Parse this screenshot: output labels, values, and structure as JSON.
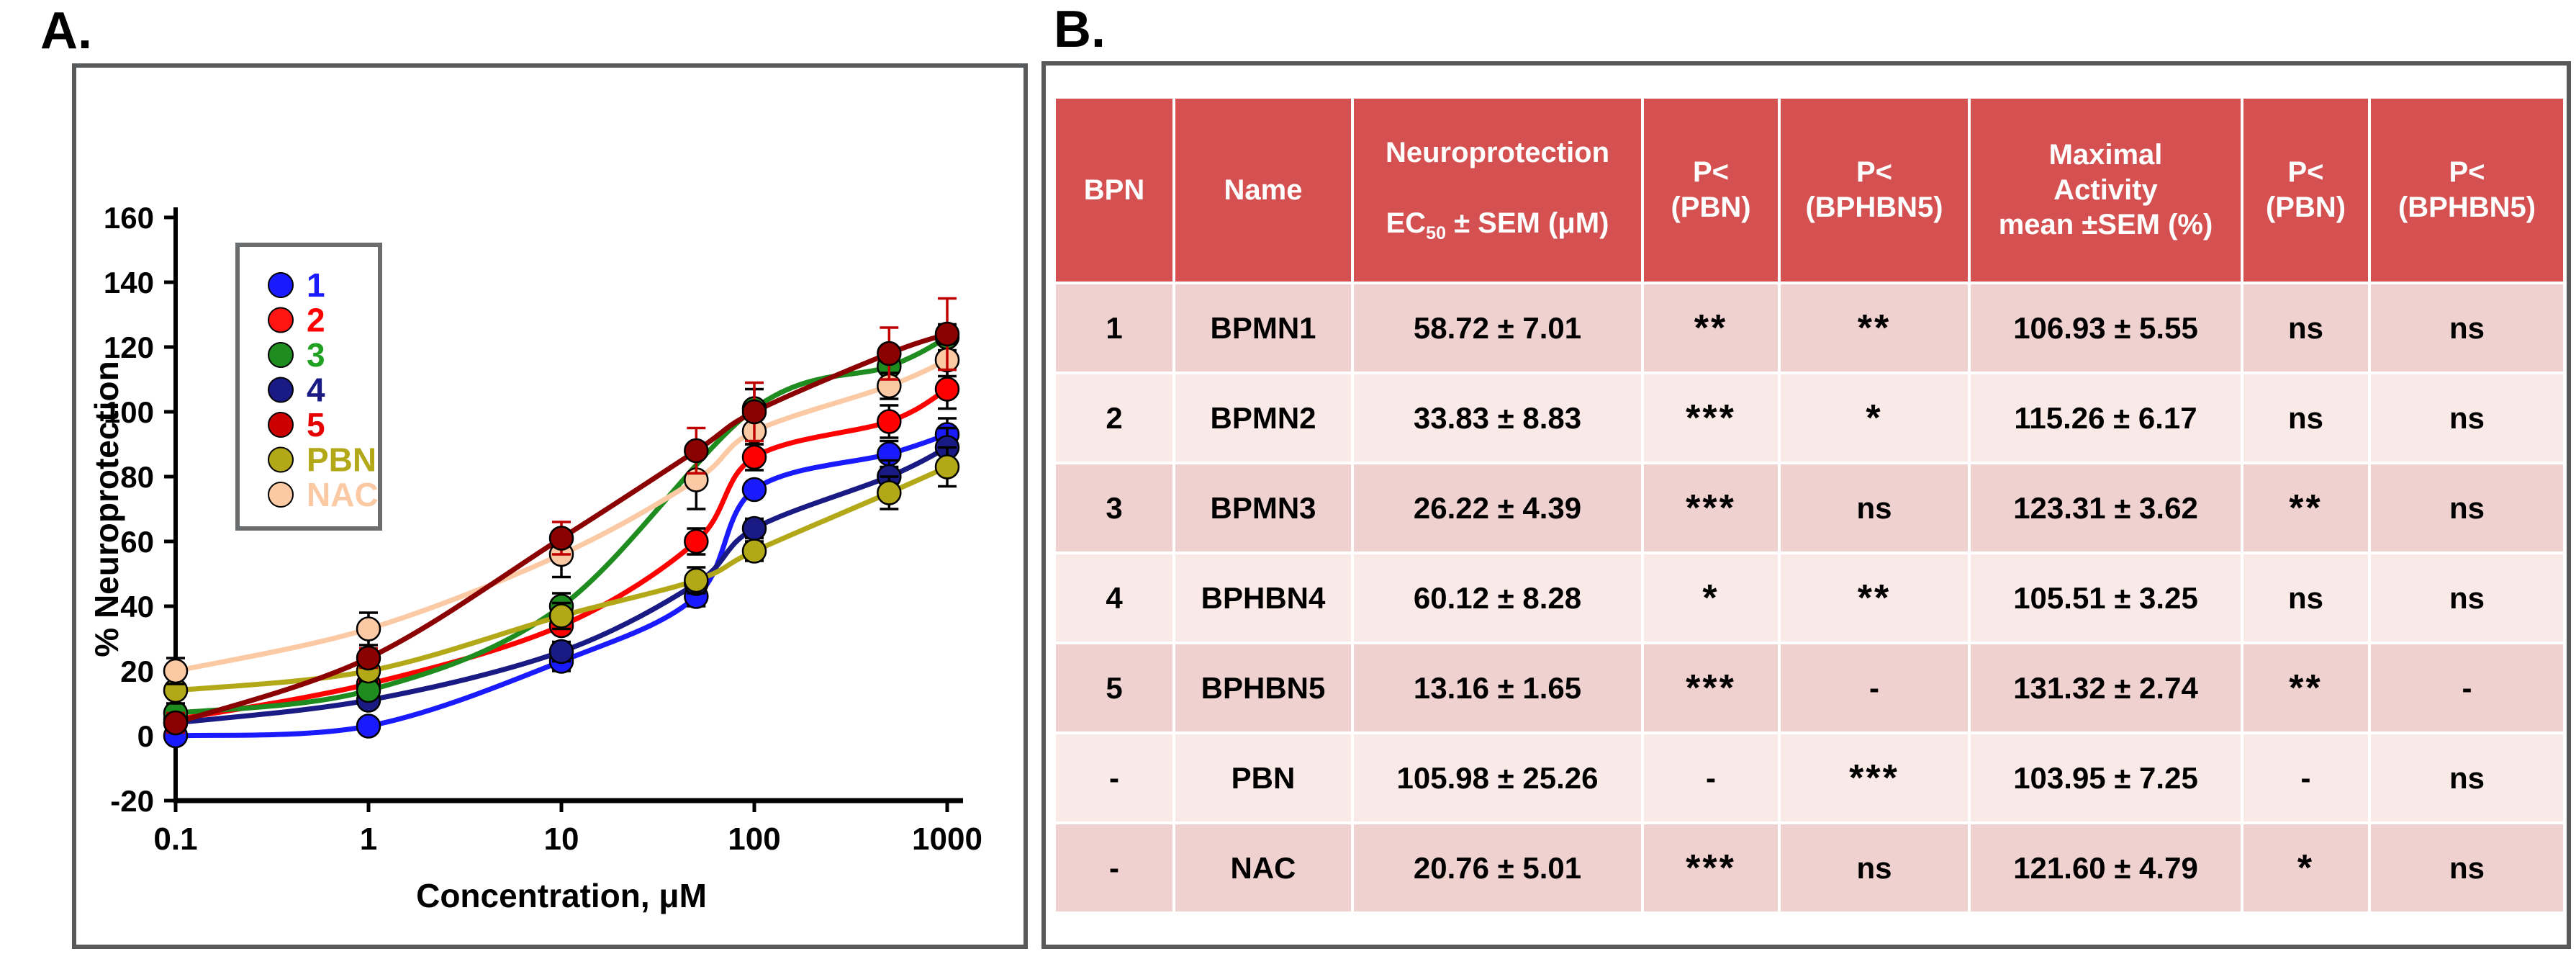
{
  "panel_a": {
    "label": "A."
  },
  "panel_b": {
    "label": "B."
  },
  "colors": {
    "header_bg": "#d55151",
    "header_text": "#ffffff",
    "row_dark": "#efd2d0",
    "row_light": "#f9e9e7",
    "panel_border": "#58595b",
    "legend_border": "#6a6c6e",
    "background": "#ffffff"
  },
  "chart_data": {
    "type": "line",
    "xscale": "log",
    "xlabel": "Concentration, μM",
    "ylabel": "% Neuroprotection",
    "xlim": [
      0.1,
      1000
    ],
    "ylim": [
      -20,
      160
    ],
    "ytick_step": 20,
    "xticks": [
      0.1,
      1,
      10,
      100,
      1000
    ],
    "xtick_labels": [
      "0.1",
      "1",
      "10",
      "100",
      "1000"
    ],
    "grid": false,
    "legend_position": "upper-left-inside",
    "series": [
      {
        "name": "1",
        "z": 1,
        "color": "#1a1aff",
        "label_color": "#1a1aff",
        "legend_marker": "#1a1aff",
        "err_color": "#000000",
        "x": [
          0.1,
          1,
          10,
          50,
          100,
          500,
          1000
        ],
        "y": [
          0,
          3,
          23,
          43,
          76,
          87,
          93
        ],
        "err": [
          0,
          0,
          3,
          3,
          0,
          4,
          5
        ]
      },
      {
        "name": "2",
        "z": 2,
        "color": "#ff0000",
        "label_color": "#ff0000",
        "legend_marker": "#ff1414",
        "err_color": "#000000",
        "x": [
          0.1,
          1,
          10,
          50,
          100,
          500,
          1000
        ],
        "y": [
          5,
          16,
          34,
          60,
          86,
          97,
          107
        ],
        "err": [
          0,
          0,
          0,
          4,
          4,
          5,
          6
        ]
      },
      {
        "name": "3",
        "z": 4,
        "color": "#1e8c1e",
        "label_color": "#21a121",
        "legend_marker": "#1e8c1e",
        "err_color": "#000000",
        "x": [
          0.1,
          1,
          10,
          100,
          500,
          1000
        ],
        "y": [
          7,
          14,
          40,
          101,
          114,
          123
        ],
        "err": [
          0,
          0,
          4,
          6,
          4,
          4
        ]
      },
      {
        "name": "4",
        "z": 3,
        "color": "#1a1a85",
        "label_color": "#1a1a85",
        "legend_marker": "#1a1a85",
        "err_color": "#000000",
        "x": [
          0.1,
          1,
          10,
          50,
          100,
          500,
          1000
        ],
        "y": [
          4,
          11,
          26,
          47,
          64,
          80,
          89
        ],
        "err": [
          0,
          0,
          3,
          0,
          3,
          5,
          6
        ]
      },
      {
        "name": "5",
        "z": 7,
        "color": "#8b0000",
        "label_color": "#e60000",
        "legend_marker": "#cc0000",
        "err_color": "#c00000",
        "x": [
          0.1,
          1,
          10,
          50,
          100,
          500,
          1000
        ],
        "y": [
          4,
          24,
          61,
          88,
          100,
          118,
          124
        ],
        "err": [
          3,
          3,
          5,
          7,
          9,
          8,
          11
        ]
      },
      {
        "name": "PBN",
        "z": 5,
        "color": "#b3a818",
        "label_color": "#b3a818",
        "legend_marker": "#b3a818",
        "err_color": "#000000",
        "x": [
          0.1,
          1,
          10,
          50,
          100,
          500,
          1000
        ],
        "y": [
          14,
          20,
          37,
          48,
          57,
          75,
          83
        ],
        "err": [
          4,
          3,
          4,
          4,
          3,
          5,
          6
        ]
      },
      {
        "name": "NAC",
        "z": 6,
        "color": "#fbc9a3",
        "label_color": "#fbc9a3",
        "legend_marker": "#fbc9a3",
        "err_color": "#000000",
        "x": [
          0.1,
          1,
          10,
          50,
          100,
          500,
          1000
        ],
        "y": [
          20,
          33,
          56,
          79,
          94,
          108,
          116
        ],
        "err": [
          4,
          5,
          7,
          9,
          4,
          4,
          5
        ]
      }
    ]
  },
  "table": {
    "headers": [
      {
        "label": "BPN"
      },
      {
        "label": "Name"
      },
      {
        "line1": "Neuroprotection",
        "ec": "EC",
        "ec_sub": "50",
        "rest": " ± SEM (μM)"
      },
      {
        "label": "P<\n(PBN)"
      },
      {
        "label": "P<\n(BPHBN5)"
      },
      {
        "label": "Maximal\nActivity\nmean ±SEM (%)"
      },
      {
        "label": "P<\n(PBN)"
      },
      {
        "label": "P<\n(BPHBN5)"
      }
    ],
    "rows": [
      [
        "1",
        "BPMN1",
        "58.72 ± 7.01",
        "**",
        "**",
        "106.93 ± 5.55",
        "ns",
        "ns"
      ],
      [
        "2",
        "BPMN2",
        "33.83 ± 8.83",
        "***",
        "*",
        "115.26 ± 6.17",
        "ns",
        "ns"
      ],
      [
        "3",
        "BPMN3",
        "26.22 ± 4.39",
        "***",
        "ns",
        "123.31 ± 3.62",
        "**",
        "ns"
      ],
      [
        "4",
        "BPHBN4",
        "60.12 ± 8.28",
        "*",
        "**",
        "105.51 ± 3.25",
        "ns",
        "ns"
      ],
      [
        "5",
        "BPHBN5",
        "13.16 ± 1.65",
        "***",
        "-",
        "131.32 ± 2.74",
        "**",
        "-"
      ],
      [
        "-",
        "PBN",
        "105.98 ± 25.26",
        "-",
        "***",
        "103.95 ± 7.25",
        "-",
        "ns"
      ],
      [
        "-",
        "NAC",
        "20.76 ± 5.01",
        "***",
        "ns",
        "121.60 ± 4.79",
        "*",
        "ns"
      ]
    ]
  }
}
